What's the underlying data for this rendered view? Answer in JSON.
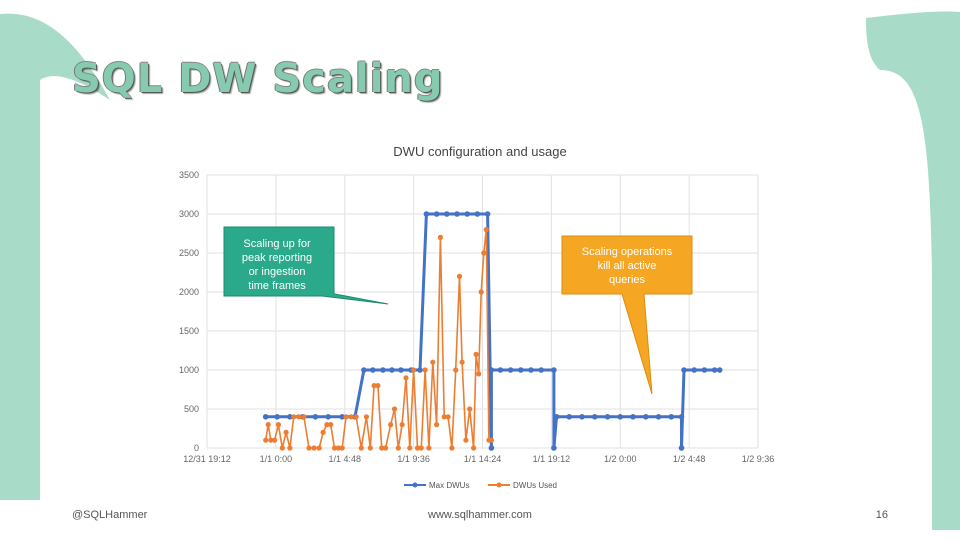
{
  "slide": {
    "title": "SQL DW Scaling",
    "footer_left": "@SQLHammer",
    "footer_center": "www.sqlhammer.com",
    "page_number": "16",
    "accent_color": "#a8dcc8"
  },
  "chart_data": {
    "type": "line",
    "title": "DWU configuration and usage",
    "xlabel": "",
    "ylabel": "",
    "ylim": [
      0,
      3500
    ],
    "y_ticks": [
      0,
      500,
      1000,
      1500,
      2000,
      2500,
      3000,
      3500
    ],
    "xlim_hours": [
      0,
      43.2
    ],
    "x_tick_labels": [
      "12/31 19:12",
      "1/1 0:00",
      "1/1 4:48",
      "1/1 9:36",
      "1/1 14:24",
      "1/1 19:12",
      "1/2 0:00",
      "1/2 4:48",
      "1/2 9:36"
    ],
    "x_unit": "hours after 12/31 19:12",
    "grid": true,
    "legend_position": "bottom",
    "series": [
      {
        "name": "Max DWUs",
        "color": "#4472c4",
        "points": [
          [
            4.6,
            400
          ],
          [
            5.5,
            400
          ],
          [
            6.5,
            400
          ],
          [
            7.5,
            400
          ],
          [
            8.5,
            400
          ],
          [
            9.5,
            400
          ],
          [
            10.6,
            400
          ],
          [
            11.6,
            400
          ],
          [
            12.3,
            1000
          ],
          [
            13.0,
            1000
          ],
          [
            13.8,
            1000
          ],
          [
            14.5,
            1000
          ],
          [
            15.2,
            1000
          ],
          [
            16.0,
            1000
          ],
          [
            16.7,
            1000
          ],
          [
            17.2,
            3000
          ],
          [
            18.0,
            3000
          ],
          [
            18.8,
            3000
          ],
          [
            19.6,
            3000
          ],
          [
            20.4,
            3000
          ],
          [
            21.2,
            3000
          ],
          [
            22.0,
            3000
          ],
          [
            22.3,
            0
          ],
          [
            22.3,
            1000
          ],
          [
            23.0,
            1000
          ],
          [
            23.8,
            1000
          ],
          [
            24.6,
            1000
          ],
          [
            25.4,
            1000
          ],
          [
            26.2,
            1000
          ],
          [
            27.2,
            1000
          ],
          [
            27.2,
            0
          ],
          [
            27.4,
            400
          ],
          [
            28.4,
            400
          ],
          [
            29.4,
            400
          ],
          [
            30.4,
            400
          ],
          [
            31.4,
            400
          ],
          [
            32.4,
            400
          ],
          [
            33.4,
            400
          ],
          [
            34.4,
            400
          ],
          [
            35.4,
            400
          ],
          [
            36.4,
            400
          ],
          [
            37.2,
            400
          ],
          [
            37.2,
            0
          ],
          [
            37.4,
            1000
          ],
          [
            38.2,
            1000
          ],
          [
            39.0,
            1000
          ],
          [
            39.8,
            1000
          ],
          [
            40.2,
            1000
          ]
        ]
      },
      {
        "name": "DWUs Used",
        "color": "#ed7d31",
        "points": [
          [
            4.6,
            100
          ],
          [
            4.8,
            300
          ],
          [
            5.0,
            100
          ],
          [
            5.3,
            100
          ],
          [
            5.6,
            300
          ],
          [
            5.9,
            0
          ],
          [
            6.2,
            200
          ],
          [
            6.5,
            0
          ],
          [
            6.8,
            400
          ],
          [
            7.2,
            400
          ],
          [
            7.6,
            400
          ],
          [
            8.0,
            0
          ],
          [
            8.4,
            0
          ],
          [
            8.8,
            0
          ],
          [
            9.1,
            200
          ],
          [
            9.4,
            300
          ],
          [
            9.7,
            300
          ],
          [
            10.0,
            0
          ],
          [
            10.3,
            0
          ],
          [
            10.6,
            0
          ],
          [
            10.9,
            400
          ],
          [
            11.3,
            400
          ],
          [
            11.7,
            400
          ],
          [
            12.1,
            0
          ],
          [
            12.5,
            400
          ],
          [
            12.8,
            0
          ],
          [
            13.1,
            800
          ],
          [
            13.4,
            800
          ],
          [
            13.7,
            0
          ],
          [
            14.0,
            0
          ],
          [
            14.4,
            300
          ],
          [
            14.7,
            500
          ],
          [
            15.0,
            0
          ],
          [
            15.3,
            300
          ],
          [
            15.6,
            900
          ],
          [
            15.9,
            0
          ],
          [
            16.2,
            1000
          ],
          [
            16.5,
            0
          ],
          [
            16.8,
            0
          ],
          [
            17.1,
            1000
          ],
          [
            17.4,
            0
          ],
          [
            17.7,
            1100
          ],
          [
            18.0,
            300
          ],
          [
            18.3,
            2700
          ],
          [
            18.6,
            400
          ],
          [
            18.9,
            400
          ],
          [
            19.2,
            0
          ],
          [
            19.5,
            1000
          ],
          [
            19.8,
            2200
          ],
          [
            20.0,
            1100
          ],
          [
            20.3,
            100
          ],
          [
            20.6,
            500
          ],
          [
            20.9,
            0
          ],
          [
            21.1,
            1200
          ],
          [
            21.3,
            950
          ],
          [
            21.5,
            2000
          ],
          [
            21.7,
            2500
          ],
          [
            21.9,
            2800
          ],
          [
            22.1,
            100
          ],
          [
            22.3,
            100
          ]
        ]
      }
    ],
    "annotations": [
      {
        "text": [
          "Scaling up for",
          "peak reporting",
          "or ingestion",
          "time frames"
        ],
        "color": "#2aaa8a"
      },
      {
        "text": [
          "Scaling operations",
          "kill all active",
          "queries"
        ],
        "color": "#f5a623"
      }
    ]
  }
}
